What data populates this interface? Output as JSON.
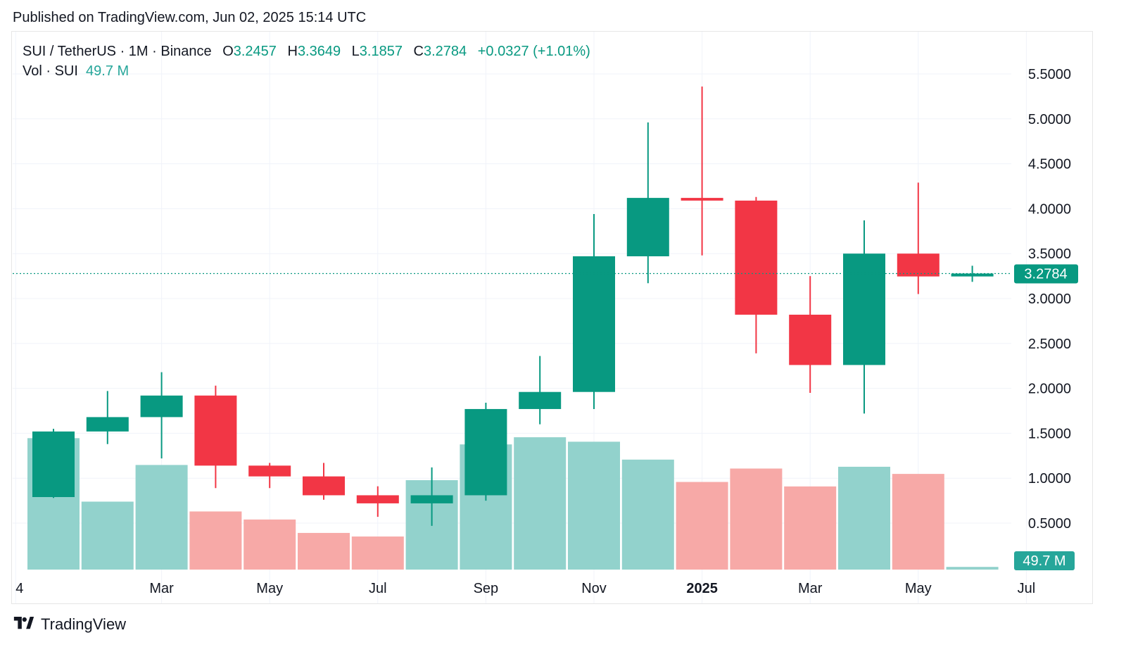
{
  "header": {
    "published": "Published on TradingView.com, Jun 02, 2025 15:14 UTC"
  },
  "legend": {
    "symbol": "SUI / TetherUS · 1M · Binance",
    "o_label": "O",
    "o_value": "3.2457",
    "h_label": "H",
    "h_value": "3.3649",
    "l_label": "L",
    "l_value": "3.1857",
    "c_label": "C",
    "c_value": "3.2784",
    "change": "+0.0327 (+1.01%)",
    "vol_label": "Vol · SUI",
    "vol_value": "49.7 M"
  },
  "footer": {
    "brand": "TradingView",
    "logo_icon": "tradingview-logo-icon"
  },
  "colors": {
    "up": "#089981",
    "down": "#f23645",
    "vol_up": "#92d2cc",
    "vol_down": "#f7a9a7",
    "grid": "#f0f3fa"
  },
  "chart_data": {
    "type": "candlestick",
    "interval": "1M",
    "ylim": [
      0,
      5.75
    ],
    "y_ticks": [
      "0.5000",
      "1.0000",
      "1.5000",
      "2.0000",
      "2.5000",
      "3.0000",
      "3.5000",
      "4.0000",
      "4.5000",
      "5.0000",
      "5.5000"
    ],
    "x_ticks": [
      {
        "label": "4",
        "index": -0.7,
        "bold": false
      },
      {
        "label": "Mar",
        "index": 2,
        "bold": false
      },
      {
        "label": "May",
        "index": 4,
        "bold": false
      },
      {
        "label": "Jul",
        "index": 6,
        "bold": false
      },
      {
        "label": "Sep",
        "index": 8,
        "bold": false
      },
      {
        "label": "Nov",
        "index": 10,
        "bold": false
      },
      {
        "label": "2025",
        "index": 12,
        "bold": true
      },
      {
        "label": "Mar",
        "index": 14,
        "bold": false
      },
      {
        "label": "May",
        "index": 16,
        "bold": false
      },
      {
        "label": "Jul",
        "index": 18,
        "bold": false
      }
    ],
    "last_price_label": "3.2784",
    "last_price": 3.2784,
    "vol_label": "49.7 M",
    "candles": [
      {
        "o": 0.79,
        "h": 1.55,
        "l": 0.78,
        "c": 1.52,
        "vol": 1.47
      },
      {
        "o": 1.52,
        "h": 1.97,
        "l": 1.38,
        "c": 1.68,
        "vol": 0.76
      },
      {
        "o": 1.68,
        "h": 2.18,
        "l": 1.22,
        "c": 1.92,
        "vol": 1.17
      },
      {
        "o": 1.92,
        "h": 2.03,
        "l": 0.89,
        "c": 1.14,
        "vol": 0.65
      },
      {
        "o": 1.14,
        "h": 1.17,
        "l": 0.89,
        "c": 1.02,
        "vol": 0.56
      },
      {
        "o": 1.02,
        "h": 1.17,
        "l": 0.76,
        "c": 0.81,
        "vol": 0.41
      },
      {
        "o": 0.81,
        "h": 0.91,
        "l": 0.57,
        "c": 0.72,
        "vol": 0.37
      },
      {
        "o": 0.72,
        "h": 1.12,
        "l": 0.47,
        "c": 0.81,
        "vol": 1.0
      },
      {
        "o": 0.81,
        "h": 1.84,
        "l": 0.75,
        "c": 1.77,
        "vol": 1.4
      },
      {
        "o": 1.77,
        "h": 2.36,
        "l": 1.6,
        "c": 1.96,
        "vol": 1.48
      },
      {
        "o": 1.96,
        "h": 3.94,
        "l": 1.77,
        "c": 3.47,
        "vol": 1.43
      },
      {
        "o": 3.47,
        "h": 4.96,
        "l": 3.17,
        "c": 4.12,
        "vol": 1.23
      },
      {
        "o": 4.12,
        "h": 5.36,
        "l": 3.48,
        "c": 4.09,
        "vol": 0.98
      },
      {
        "o": 4.09,
        "h": 4.13,
        "l": 2.39,
        "c": 2.82,
        "vol": 1.13
      },
      {
        "o": 2.82,
        "h": 3.25,
        "l": 1.95,
        "c": 2.26,
        "vol": 0.93
      },
      {
        "o": 2.26,
        "h": 3.87,
        "l": 1.72,
        "c": 3.5,
        "vol": 1.15
      },
      {
        "o": 3.5,
        "h": 4.29,
        "l": 3.05,
        "c": 3.2457,
        "vol": 1.07
      },
      {
        "o": 3.2457,
        "h": 3.3649,
        "l": 3.1857,
        "c": 3.2784,
        "vol": 0.03
      }
    ]
  }
}
